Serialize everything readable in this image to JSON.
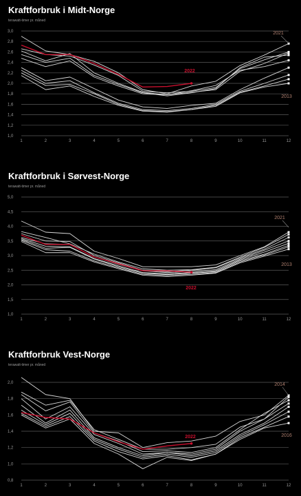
{
  "chart_data": [
    {
      "type": "line",
      "title": "Kraftforbruk i Midt-Norge",
      "subtitle": "terawatt-timer pr. måned",
      "x": [
        1,
        2,
        3,
        4,
        5,
        6,
        7,
        8,
        9,
        10,
        11,
        12
      ],
      "xticks": [
        "1",
        "2",
        "3",
        "4",
        "5",
        "6",
        "7",
        "8",
        "9",
        "10",
        "11",
        "12"
      ],
      "ylim": [
        1.0,
        3.0
      ],
      "yticks": [
        "1,0",
        "1,2",
        "1,4",
        "1,6",
        "1,8",
        "2,0",
        "2,2",
        "2,4",
        "2,6",
        "2,8",
        "3,0"
      ],
      "grid": true,
      "annotations": [
        "2021",
        "2022",
        "2013"
      ],
      "highlight_color": "#c8102e",
      "series_color": "#d9d9d9",
      "highlight": {
        "name": "2022",
        "values": [
          2.73,
          2.55,
          2.55,
          2.38,
          2.17,
          1.93,
          1.94,
          2.0
        ]
      },
      "series": [
        {
          "values": [
            2.9,
            2.62,
            2.55,
            2.42,
            2.2,
            1.88,
            1.8,
            1.95,
            2.04,
            2.34,
            2.54,
            2.76
          ]
        },
        {
          "values": [
            2.66,
            2.55,
            2.52,
            2.35,
            2.15,
            1.85,
            1.82,
            1.85,
            1.92,
            2.28,
            2.45,
            2.6
          ]
        },
        {
          "values": [
            2.62,
            2.43,
            2.57,
            2.2,
            2.0,
            1.83,
            1.78,
            1.83,
            1.88,
            2.23,
            2.38,
            2.58
          ]
        },
        {
          "values": [
            2.55,
            2.4,
            2.48,
            2.15,
            1.98,
            1.82,
            1.76,
            1.82,
            1.9,
            2.3,
            2.5,
            2.54
          ]
        },
        {
          "values": [
            2.48,
            2.32,
            2.43,
            2.12,
            1.95,
            1.8,
            1.78,
            1.86,
            1.96,
            2.25,
            2.32,
            2.44
          ]
        },
        {
          "values": [
            2.3,
            2.05,
            2.12,
            1.9,
            1.68,
            1.55,
            1.52,
            1.58,
            1.62,
            1.88,
            2.1,
            2.3
          ]
        },
        {
          "values": [
            2.25,
            2.0,
            2.05,
            1.82,
            1.62,
            1.5,
            1.48,
            1.52,
            1.6,
            1.85,
            2.0,
            2.16
          ]
        },
        {
          "values": [
            2.2,
            1.96,
            1.98,
            1.8,
            1.6,
            1.48,
            1.46,
            1.5,
            1.58,
            1.83,
            1.95,
            2.08
          ]
        },
        {
          "values": [
            2.15,
            1.88,
            1.95,
            1.75,
            1.58,
            1.47,
            1.45,
            1.5,
            1.56,
            1.82,
            1.93,
            2.0
          ]
        }
      ]
    },
    {
      "type": "line",
      "title": "Kraftforbruk i Sørvest-Norge",
      "subtitle": "terawatt-timer pr. måned",
      "x": [
        1,
        2,
        3,
        4,
        5,
        6,
        7,
        8,
        9,
        10,
        11,
        12
      ],
      "xticks": [
        "1",
        "2",
        "3",
        "4",
        "5",
        "6",
        "7",
        "8",
        "9",
        "10",
        "11",
        "12"
      ],
      "ylim": [
        1.0,
        5.0
      ],
      "yticks": [
        "1,0",
        "1,5",
        "2,0",
        "2,5",
        "3,0",
        "3,5",
        "4,0",
        "4,5",
        "5,0"
      ],
      "grid": true,
      "annotations": [
        "2021",
        "2013",
        "2022"
      ],
      "highlight_color": "#c8102e",
      "series_color": "#d9d9d9",
      "highlight": {
        "name": "2022",
        "values": [
          3.7,
          3.38,
          3.38,
          2.95,
          2.72,
          2.48,
          2.48,
          2.43
        ]
      },
      "series": [
        {
          "values": [
            4.18,
            3.8,
            3.75,
            3.15,
            2.9,
            2.62,
            2.62,
            2.62,
            2.68,
            3.0,
            3.3,
            3.8
          ]
        },
        {
          "values": [
            3.82,
            3.62,
            3.4,
            3.05,
            2.78,
            2.55,
            2.5,
            2.52,
            2.6,
            2.95,
            3.28,
            3.72
          ]
        },
        {
          "values": [
            3.75,
            3.5,
            3.48,
            3.0,
            2.75,
            2.5,
            2.45,
            2.5,
            2.58,
            2.92,
            3.22,
            3.62
          ]
        },
        {
          "values": [
            3.62,
            3.4,
            3.38,
            2.95,
            2.7,
            2.48,
            2.42,
            2.46,
            2.52,
            2.88,
            3.18,
            3.5
          ]
        },
        {
          "values": [
            3.58,
            3.32,
            3.3,
            2.9,
            2.65,
            2.42,
            2.38,
            2.42,
            2.48,
            2.85,
            3.12,
            3.42
          ]
        },
        {
          "values": [
            3.55,
            3.25,
            3.28,
            2.88,
            2.62,
            2.4,
            2.35,
            2.4,
            2.45,
            2.82,
            3.05,
            3.35
          ]
        },
        {
          "values": [
            3.52,
            3.2,
            3.15,
            2.82,
            2.58,
            2.36,
            2.32,
            2.36,
            2.42,
            2.78,
            3.02,
            3.3
          ]
        },
        {
          "values": [
            3.48,
            3.1,
            3.1,
            2.78,
            2.55,
            2.33,
            2.28,
            2.33,
            2.4,
            2.75,
            2.98,
            3.22
          ]
        }
      ]
    },
    {
      "type": "line",
      "title": "Kraftforbruk Vest-Norge",
      "subtitle": "terawatt-timer pr. måned",
      "x": [
        1,
        2,
        3,
        4,
        5,
        6,
        7,
        8,
        9,
        10,
        11,
        12
      ],
      "xticks": [
        "1",
        "2",
        "3",
        "4",
        "5",
        "6",
        "7",
        "8",
        "9",
        "10",
        "11",
        "12"
      ],
      "ylim": [
        0.8,
        2.0
      ],
      "yticks": [
        "0,8",
        "1,0",
        "1,2",
        "1,4",
        "1,6",
        "1,8",
        "2,0"
      ],
      "grid": true,
      "annotations": [
        "2014",
        "2016",
        "2022"
      ],
      "highlight_color": "#c8102e",
      "series_color": "#d9d9d9",
      "highlight": {
        "name": "2022",
        "values": [
          1.63,
          1.57,
          1.55,
          1.38,
          1.27,
          1.18,
          1.22,
          1.25
        ]
      },
      "series": [
        {
          "values": [
            2.06,
            1.85,
            1.8,
            1.4,
            1.38,
            1.2,
            1.26,
            1.28,
            1.34,
            1.52,
            1.6,
            1.84
          ]
        },
        {
          "values": [
            1.88,
            1.72,
            1.78,
            1.42,
            1.3,
            1.18,
            1.18,
            1.2,
            1.24,
            1.45,
            1.55,
            1.82
          ]
        },
        {
          "values": [
            1.85,
            1.65,
            1.76,
            1.38,
            1.28,
            1.15,
            1.16,
            1.14,
            1.2,
            1.42,
            1.62,
            1.78
          ]
        },
        {
          "values": [
            1.8,
            1.55,
            1.7,
            1.36,
            1.25,
            1.12,
            1.14,
            1.12,
            1.18,
            1.4,
            1.55,
            1.74
          ]
        },
        {
          "values": [
            1.72,
            1.5,
            1.66,
            1.32,
            1.2,
            1.1,
            1.14,
            1.1,
            1.16,
            1.36,
            1.5,
            1.7
          ]
        },
        {
          "values": [
            1.66,
            1.48,
            1.62,
            1.3,
            1.18,
            1.08,
            1.12,
            1.08,
            1.14,
            1.34,
            1.48,
            1.64
          ]
        },
        {
          "values": [
            1.62,
            1.46,
            1.58,
            1.28,
            1.15,
            1.06,
            1.1,
            1.05,
            1.12,
            1.32,
            1.45,
            1.58
          ]
        },
        {
          "values": [
            1.6,
            1.44,
            1.55,
            1.25,
            1.12,
            0.94,
            1.08,
            1.04,
            1.12,
            1.3,
            1.44,
            1.5
          ]
        }
      ]
    }
  ]
}
